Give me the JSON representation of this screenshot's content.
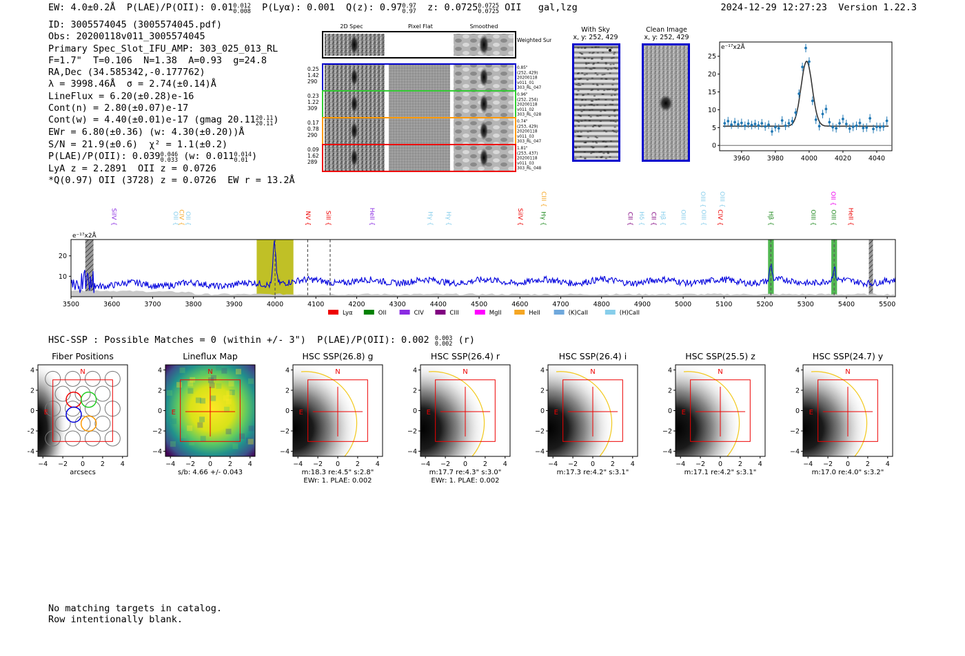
{
  "header": {
    "ew": "EW: 4.0±0.2Å",
    "plae_label": "P(LAE)/P(OII): 0.01",
    "plae_up": "0.012",
    "plae_dn": "0.008",
    "plya": "P(Lyα): 0.001",
    "qz_label": "Q(z): 0.97",
    "qz_up": "0.97",
    "qz_dn": "0.97",
    "z_label": "z: 0.0725",
    "z_up": "0.0725",
    "z_dn": "0.0725",
    "z_tail": "OII   gal,lzg",
    "datetime": "2024-12-29 12:27:23",
    "version": "Version 1.22.3"
  },
  "info": {
    "id": "ID: 3005574045 (3005574045.pdf)",
    "obs": "Obs: 20200118v011_3005574045",
    "primary": "Primary Spec_Slot_IFU_AMP: 303_025_013_RL",
    "fwhm": "F=1.7\"  T=0.106  N=1.38  A=0.93  g=24.8",
    "radec": "RA,Dec (34.585342,-0.177762)",
    "lambda": "λ = 3998.46Å  σ = 2.74(±0.14)Å",
    "lineflux": "LineFlux = 6.20(±0.28)e-16",
    "contn": "Cont(n) = 2.80(±0.07)e-17",
    "contw": "Cont(w) = 4.40(±0.01)e-17 (gmag 20.11",
    "contw_up": "20.11",
    "contw_dn": "20.11",
    "contw_end": ")",
    "ewr": "EWr = 6.80(±0.36) (w: 4.30(±0.20))Å",
    "sn": "S/N = 21.9(±0.6)  χ² = 1.1(±0.2)",
    "plae": "P(LAE)/P(OII): 0.039",
    "plae_up": "0.046",
    "plae_dn": "0.033",
    "plae_mid": " (w: 0.011",
    "plae_w_up": "0.014",
    "plae_w_dn": "0.01",
    "plae_end": ")",
    "lya": "LyA z = 2.2891  OII z = 0.0726",
    "q": "*Q(0.97) OII (3728) z = 0.0726  EW r = 13.2Å"
  },
  "cutouts": {
    "col_titles": [
      "2D Spec",
      "Pixel Flat",
      "Smoothed"
    ],
    "weighted_sum": "Weighted Sum",
    "rows": [
      {
        "left": [
          "0.25",
          "1.42",
          "290"
        ],
        "right": [
          "0.85\"",
          "(252, 429)",
          "20200118",
          "v011_01",
          "303_RL_047"
        ],
        "color": "#0000cc"
      },
      {
        "left": [
          "0.23",
          "1.22",
          "309"
        ],
        "right": [
          "0.96\"",
          "(252, 254)",
          "20200118",
          "v011_02",
          "303_RL_028"
        ],
        "color": "#33cc33"
      },
      {
        "left": [
          "0.17",
          "0.78",
          "290"
        ],
        "right": [
          "0.74\"",
          "(253, 429)",
          "20200118",
          "v011_03",
          "303_RL_047"
        ],
        "color": "#ff9900"
      },
      {
        "left": [
          "0.09",
          "1.62",
          "289"
        ],
        "right": [
          "1.81\"",
          "(253, 437)",
          "20200118",
          "v011_03",
          "303_RL_048"
        ],
        "color": "#ee0000"
      }
    ]
  },
  "sky": {
    "with_sky_title": "With Sky",
    "with_sky_xy": "x, y: 252, 429",
    "clean_title": "Clean Image",
    "clean_xy": "x, y: 252, 429"
  },
  "zoom_chart": {
    "unit": "e⁻¹⁷x2Å",
    "x_ticks": [
      "3960",
      "3980",
      "4000",
      "4020",
      "4040"
    ],
    "y_ticks": [
      "0",
      "5",
      "10",
      "15",
      "20",
      "25"
    ]
  },
  "chart_data": [
    {
      "type": "scatter",
      "title": "",
      "ylabel": "e-17 x2Å",
      "xlim": [
        3947,
        4049
      ],
      "ylim": [
        -1.5,
        29
      ],
      "x": [
        3950,
        3952,
        3954,
        3956,
        3958,
        3960,
        3962,
        3964,
        3966,
        3968,
        3970,
        3972,
        3974,
        3976,
        3978,
        3980,
        3982,
        3984,
        3986,
        3988,
        3990,
        3992,
        3994,
        3996,
        3998,
        4000,
        4002,
        4004,
        4006,
        4008,
        4010,
        4012,
        4014,
        4016,
        4018,
        4020,
        4022,
        4024,
        4026,
        4028,
        4030,
        4032,
        4034,
        4036,
        4038,
        4040,
        4042,
        4044,
        4046
      ],
      "values": [
        6.2,
        6.8,
        5.8,
        6.5,
        5.9,
        6.3,
        5.5,
        6.1,
        5.7,
        6.0,
        5.6,
        6.2,
        5.3,
        5.8,
        3.9,
        5.1,
        4.8,
        7.0,
        5.5,
        6.2,
        6.8,
        9.2,
        14.5,
        22.0,
        27.3,
        23.5,
        12.5,
        7.2,
        5.4,
        8.8,
        10.2,
        6.5,
        5.1,
        4.8,
        6.2,
        7.4,
        6.0,
        4.7,
        5.2,
        5.5,
        6.3,
        4.9,
        5.0,
        7.6,
        4.6,
        5.2,
        5.1,
        5.3,
        6.9
      ],
      "model_peak": 23.6,
      "model_center": 3998.5,
      "model_sigma": 2.74,
      "model_base": 5.4
    },
    {
      "type": "line",
      "title": "",
      "ylabel": "e-17 x2Å",
      "xlim": [
        3500,
        5520
      ],
      "ylim": [
        0,
        28
      ],
      "x_ticks": [
        3500,
        3600,
        3700,
        3800,
        3900,
        4000,
        4100,
        4200,
        4300,
        4400,
        4500,
        4600,
        4700,
        4800,
        4900,
        5000,
        5100,
        5200,
        5300,
        5400,
        5500
      ],
      "y_ticks": [
        10,
        20
      ],
      "lines": [
        {
          "label": "SiIV",
          "x": 3605,
          "color": "#8a2be2",
          "cls": "civ"
        },
        {
          "label": "OII",
          "x": 3756,
          "color": "#87ceeb",
          "cls": "hcal"
        },
        {
          "label": "CIV",
          "x": 3770,
          "color": "#f5a623",
          "cls": "heii"
        },
        {
          "label": "OII",
          "x": 3786,
          "color": "#87ceeb",
          "cls": "hcal"
        },
        {
          "label": "NV",
          "x": 4080,
          "color": "#ee0000",
          "cls": "lya"
        },
        {
          "label": "SiII",
          "x": 4130,
          "color": "#ee0000",
          "cls": "lya"
        },
        {
          "label": "HeII",
          "x": 4237,
          "color": "#8a2be2",
          "cls": "civ"
        },
        {
          "label": "Hγ",
          "x": 4380,
          "color": "#87ceeb",
          "cls": "hcal"
        },
        {
          "label": "Hγ",
          "x": 4425,
          "color": "#87ceeb",
          "cls": "hcal"
        },
        {
          "label": "SiIV",
          "x": 4600,
          "color": "#ee0000",
          "cls": "lya"
        },
        {
          "label": "Hγ",
          "x": 4657,
          "color": "#228b22",
          "cls": "oii"
        },
        {
          "label": "CII",
          "x": 4870,
          "color": "#800080",
          "cls": "ciii"
        },
        {
          "label": "Hδ",
          "x": 4898,
          "color": "#87ceeb",
          "cls": "hcal"
        },
        {
          "label": "CII",
          "x": 4927,
          "color": "#800080",
          "cls": "ciii"
        },
        {
          "label": "Hβ",
          "x": 4950,
          "color": "#87ceeb",
          "cls": "hcal"
        },
        {
          "label": "OIII",
          "x": 5000,
          "color": "#87ceeb",
          "cls": "hcal"
        },
        {
          "label": "OIII",
          "x": 5050,
          "color": "#87ceeb",
          "cls": "hcal"
        },
        {
          "label": "CIV",
          "x": 5090,
          "color": "#ee0000",
          "cls": "lya"
        },
        {
          "label": "Hβ",
          "x": 5214,
          "color": "#228b22",
          "cls": "oii"
        },
        {
          "label": "OIII",
          "x": 5318,
          "color": "#228b22",
          "cls": "oii"
        },
        {
          "label": "OIII",
          "x": 5368,
          "color": "#228b22",
          "cls": "oii"
        },
        {
          "label": "HeII",
          "x": 5410,
          "color": "#ee0000",
          "cls": "lya"
        }
      ],
      "upper_labels": [
        {
          "label": "CIII",
          "x": 4658,
          "color": "#f5a623"
        },
        {
          "label": "OIII",
          "x": 5048,
          "color": "#87ceeb"
        },
        {
          "label": "OIII",
          "x": 5095,
          "color": "#87ceeb"
        },
        {
          "label": "OII",
          "x": 5367,
          "color": "#ee00ee"
        }
      ],
      "bands": [
        {
          "x0": 3955,
          "x1": 4045,
          "color": "#b5b500"
        },
        {
          "x0": 5208,
          "x1": 5222,
          "color": "#33aa33"
        },
        {
          "x0": 5363,
          "x1": 5377,
          "color": "#33aa33"
        }
      ],
      "hatched": [
        {
          "x0": 3535,
          "x1": 3555
        },
        {
          "x0": 5455,
          "x1": 5465
        }
      ],
      "dashed": [
        4000,
        4080,
        4135,
        5215,
        5370
      ],
      "legend": [
        {
          "label": "Lyα",
          "color": "#ee0000"
        },
        {
          "label": "OII",
          "color": "#008000"
        },
        {
          "label": "CIV",
          "color": "#8a2be2"
        },
        {
          "label": "CIII",
          "color": "#800080"
        },
        {
          "label": "MgII",
          "color": "#ff00ff"
        },
        {
          "label": "HeII",
          "color": "#f5a623"
        },
        {
          "label": "(K)CaII",
          "color": "#6fa8dc"
        },
        {
          "label": "(H)CaII",
          "color": "#87ceeb"
        }
      ]
    }
  ],
  "hsc": {
    "title": "HSC-SSP : Possible Matches = 0 (within +/- 3\")  P(LAE)/P(OII): 0.002",
    "title_up": "0.003",
    "title_dn": "0.002",
    "title_end": "(r)",
    "panels": [
      {
        "title": "Fiber Positions",
        "captions": [
          "arcsecs"
        ],
        "kind": "fiber"
      },
      {
        "title": "Lineflux Map",
        "captions": [
          "s/b: 4.66 +/- 0.043"
        ],
        "kind": "flux"
      },
      {
        "title": "HSC SSP(26.8) g",
        "captions": [
          "m:18.3  re:4.5\"  s:2.8\"",
          "EWr: 1. PLAE: 0.002"
        ],
        "kind": "img"
      },
      {
        "title": "HSC SSP(26.4) r",
        "captions": [
          "m:17.7  re:4.3\"  s:3.0\"",
          "EWr: 1. PLAE: 0.002"
        ],
        "kind": "img"
      },
      {
        "title": "HSC SSP(26.4) i",
        "captions": [
          "m:17.3  re:4.2\"  s:3.1\""
        ],
        "kind": "img"
      },
      {
        "title": "HSC SSP(25.5) z",
        "captions": [
          "m:17.1  re:4.2\"  s:3.1\""
        ],
        "kind": "img"
      },
      {
        "title": "HSC SSP(24.7) y",
        "captions": [
          "m:17.0  re:4.0\"  s:3.2\""
        ],
        "kind": "img"
      }
    ],
    "ticks": [
      "4",
      "2",
      "0",
      "−2",
      "−4"
    ],
    "xticks": [
      "−4",
      "−2",
      "0",
      "2",
      "4"
    ],
    "north": "N",
    "east": "E"
  },
  "footer": {
    "line1": "No matching targets in catalog.",
    "line2": "Row intentionally blank."
  }
}
